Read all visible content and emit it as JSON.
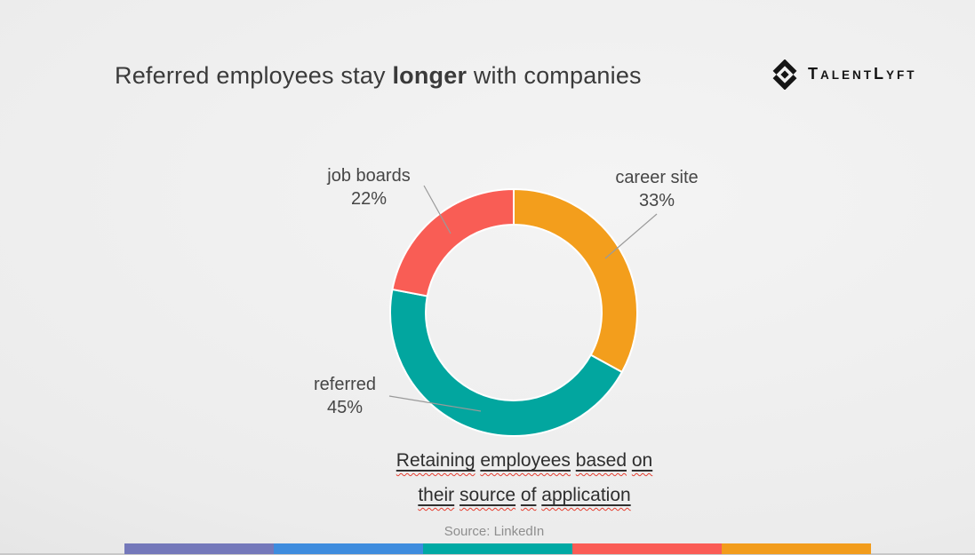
{
  "header": {
    "title_prefix": "Referred employees stay ",
    "title_emphasis": "longer",
    "title_suffix": " with companies",
    "logo": {
      "brand": "TalentLyft",
      "display_parts": [
        "T",
        "ALENT",
        "L",
        "YFT"
      ]
    }
  },
  "chart_data": {
    "type": "pie",
    "subtype": "donut",
    "title": "Retaining employees based on their source of application",
    "title_lines": [
      "Retaining employees based on",
      "their source of application"
    ],
    "source_note": "Source: LinkedIn",
    "direction": "clockwise",
    "start_angle_deg": 0,
    "hole_ratio": 0.71,
    "legend_position": "callouts",
    "segments": [
      {
        "label": "career site",
        "value": 33,
        "display": "33%",
        "color": "#F39E1C"
      },
      {
        "label": "referred",
        "value": 45,
        "display": "45%",
        "color": "#02A69F"
      },
      {
        "label": "job boards",
        "value": 22,
        "display": "22%",
        "color": "#F95D55"
      }
    ],
    "segment_divider_color": "#FFFFFF",
    "label_color": "#464646"
  },
  "footer": {
    "bar_colors": [
      "#7478BA",
      "#3E8CDE",
      "#00A9A4",
      "#FA5B55",
      "#F29C1C"
    ]
  }
}
